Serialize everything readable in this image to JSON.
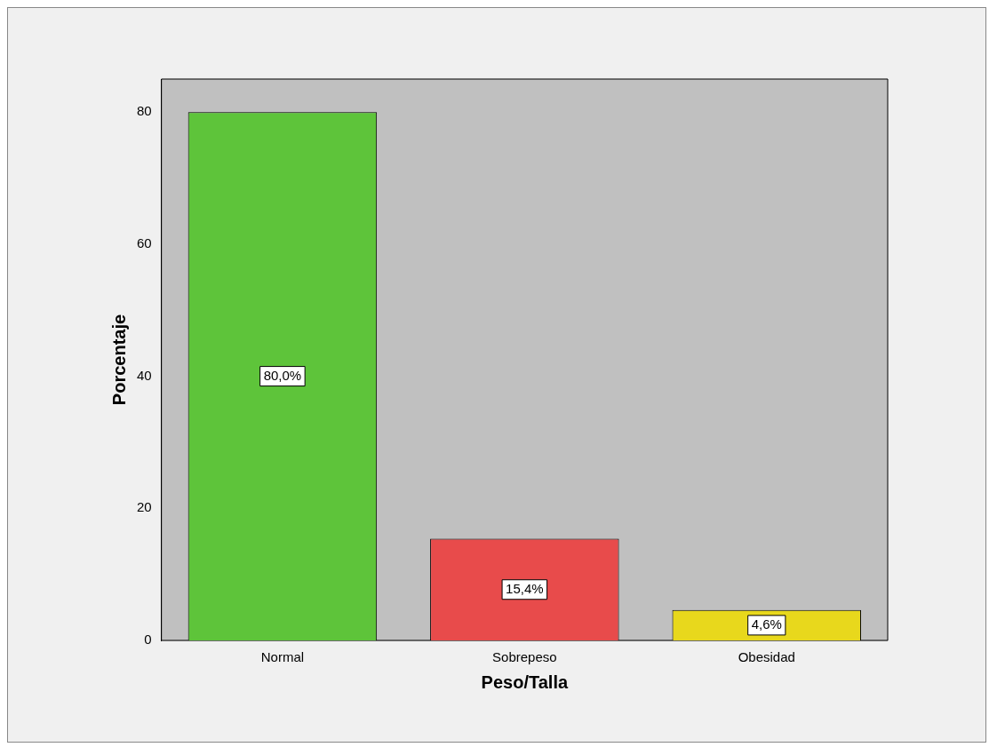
{
  "chart_data": {
    "type": "bar",
    "xlabel": "Peso/Talla",
    "ylabel": "Porcentaje",
    "categories": [
      "Normal",
      "Sobrepeso",
      "Obesidad"
    ],
    "values": [
      80,
      15.4,
      4.6
    ],
    "colors": [
      "#5ec43a",
      "#e84b4b",
      "#e8d81c"
    ],
    "value_labels": [
      "80,0%",
      "15,4%",
      "4,6%"
    ],
    "ylim": [
      0,
      85
    ],
    "yticks": [
      0,
      20,
      40,
      60,
      80
    ],
    "grid": false,
    "legend": false
  }
}
